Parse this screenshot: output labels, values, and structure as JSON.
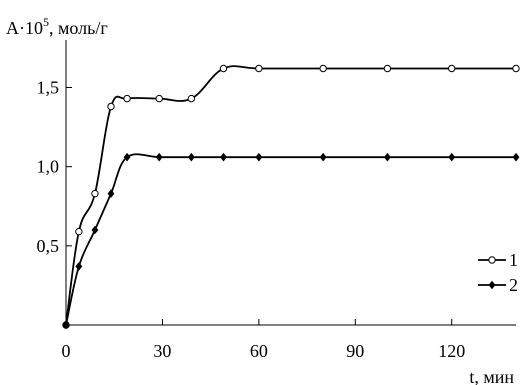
{
  "chart_data": {
    "type": "line",
    "title": "",
    "ylabel_main": "A·10",
    "ylabel_exp": "5",
    "ylabel_unit": ", моль/г",
    "xlabel": "t, мин",
    "xlim": [
      0,
      140
    ],
    "ylim": [
      0,
      1.8
    ],
    "x_ticks": [
      0,
      30,
      60,
      90,
      120
    ],
    "x_tick_labels": [
      "0",
      "30",
      "60",
      "90",
      "120"
    ],
    "y_ticks": [
      0.5,
      1.0,
      1.5
    ],
    "y_tick_labels": [
      "0,5",
      "1,0",
      "1,5"
    ],
    "grid": false,
    "legend_placement": "right",
    "series": [
      {
        "name": "1",
        "marker": "open-circle",
        "x": [
          0,
          4,
          9,
          14,
          19,
          29,
          39,
          49,
          60,
          80,
          100,
          120,
          140
        ],
        "y": [
          0,
          0.59,
          0.83,
          1.38,
          1.43,
          1.43,
          1.43,
          1.62,
          1.62,
          1.62,
          1.62,
          1.62,
          1.62
        ]
      },
      {
        "name": "2",
        "marker": "filled-diamond",
        "x": [
          0,
          4,
          9,
          14,
          19,
          29,
          39,
          49,
          60,
          80,
          100,
          120,
          140
        ],
        "y": [
          0,
          0.37,
          0.6,
          0.83,
          1.06,
          1.06,
          1.06,
          1.06,
          1.06,
          1.06,
          1.06,
          1.06,
          1.06
        ]
      }
    ]
  }
}
